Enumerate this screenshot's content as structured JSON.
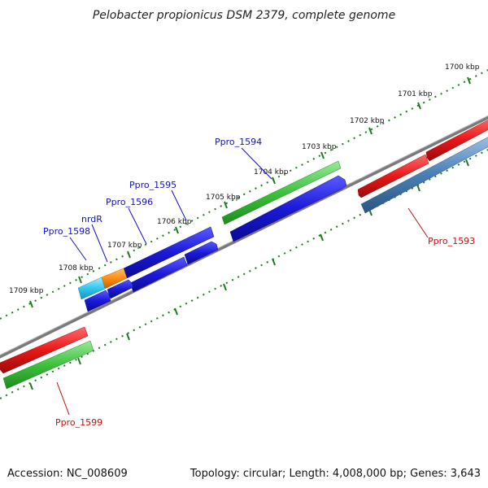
{
  "title": "Pelobacter propionicus DSM 2379, complete genome",
  "footer": {
    "accession": "Accession: NC_008609",
    "summary": "Topology: circular; Length: 4,008,000 bp; Genes: 3,643"
  },
  "scale_labels": [
    "1700 kbp",
    "1701 kbp",
    "1702 kbp",
    "1703 kbp",
    "1704 kbp",
    "1705 kbp",
    "1706 kbp",
    "1707 kbp",
    "1708 kbp",
    "1709 kbp"
  ],
  "gene_labels": [
    "Ppro_1594",
    "Ppro_1595",
    "Ppro_1596",
    "nrdR",
    "Ppro_1598",
    "Ppro_1593",
    "Ppro_1599"
  ],
  "colors": {
    "forward_gene": "#1a1ad8",
    "reverse_gene": "#1a1ad8",
    "red_gene": "#e81818",
    "green_gene": "#3cc23c",
    "steel_gene": "#4a7fb5",
    "cyan_gene": "#33c6ee",
    "orange_gene": "#ff8c10",
    "backbone": "#7a7a7a",
    "ticks": "#1f7a1f",
    "label_blue": "#1010c8",
    "label_red": "#c81010"
  }
}
